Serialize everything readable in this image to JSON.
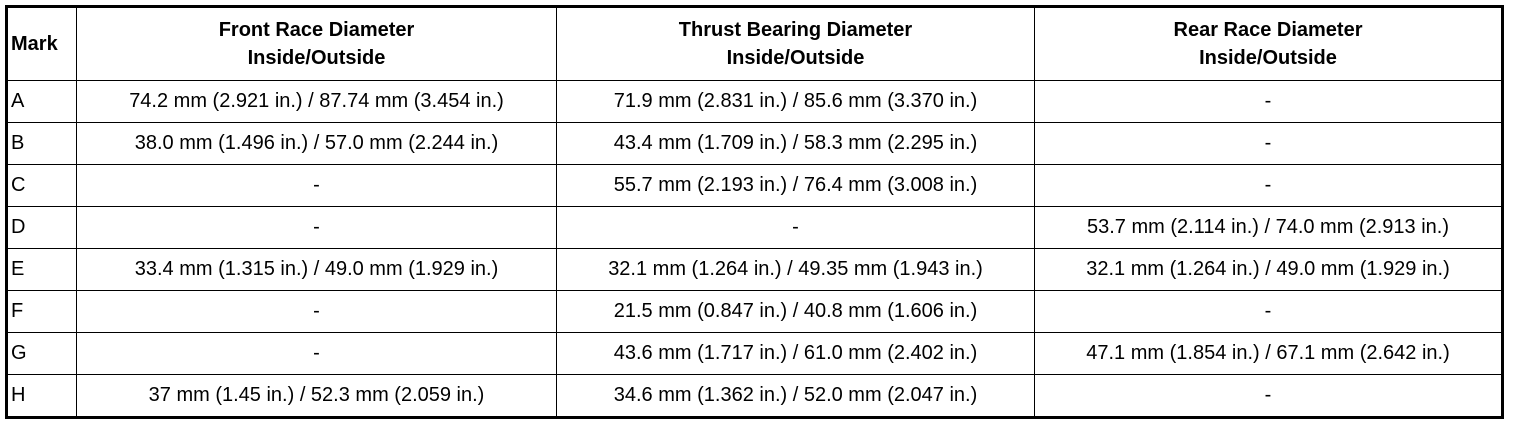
{
  "table": {
    "columns": [
      {
        "lines": [
          "Mark"
        ]
      },
      {
        "lines": [
          "Front Race Diameter",
          "Inside/Outside"
        ]
      },
      {
        "lines": [
          "Thrust Bearing Diameter",
          "Inside/Outside"
        ]
      },
      {
        "lines": [
          "Rear Race Diameter",
          "Inside/Outside"
        ]
      }
    ],
    "rows": [
      [
        "A",
        "74.2 mm (2.921 in.) / 87.74 mm (3.454 in.)",
        "71.9 mm (2.831 in.) / 85.6 mm (3.370 in.)",
        "-"
      ],
      [
        "B",
        "38.0 mm (1.496 in.) / 57.0 mm (2.244 in.)",
        "43.4 mm (1.709 in.) / 58.3 mm (2.295 in.)",
        "-"
      ],
      [
        "C",
        "-",
        "55.7 mm (2.193 in.) / 76.4 mm (3.008 in.)",
        "-"
      ],
      [
        "D",
        "-",
        "-",
        "53.7 mm (2.114 in.) / 74.0 mm (2.913 in.)"
      ],
      [
        "E",
        "33.4 mm (1.315 in.) / 49.0 mm (1.929 in.)",
        "32.1 mm (1.264 in.) / 49.35 mm (1.943 in.)",
        "32.1 mm (1.264 in.) / 49.0 mm (1.929 in.)"
      ],
      [
        "F",
        "-",
        "21.5 mm (0.847 in.) / 40.8 mm (1.606 in.)",
        "-"
      ],
      [
        "G",
        "-",
        "43.6 mm (1.717 in.) / 61.0 mm (2.402 in.)",
        "47.1 mm (1.854 in.) / 67.1 mm (2.642 in.)"
      ],
      [
        "H",
        "37 mm (1.45 in.) / 52.3 mm (2.059 in.)",
        "34.6 mm (1.362 in.) / 52.0 mm (2.047 in.)",
        "-"
      ]
    ]
  }
}
